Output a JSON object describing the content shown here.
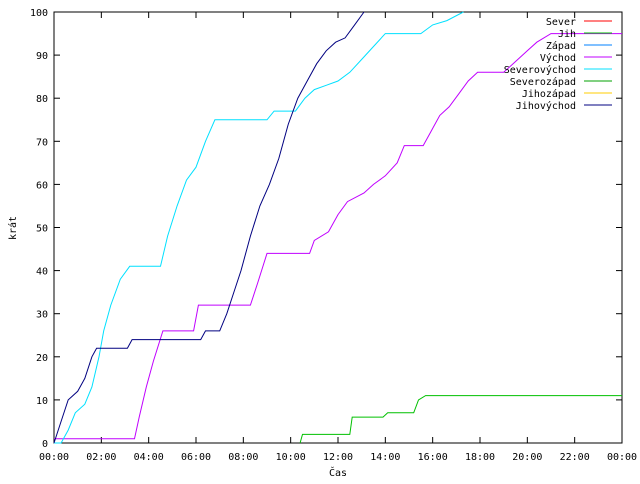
{
  "chart_data": {
    "type": "line",
    "xlabel": "Čas",
    "ylabel": "krát",
    "xlim": [
      0,
      24
    ],
    "ylim": [
      0,
      100
    ],
    "x_ticks": [
      "00:00",
      "02:00",
      "04:00",
      "06:00",
      "08:00",
      "10:00",
      "12:00",
      "14:00",
      "16:00",
      "18:00",
      "20:00",
      "22:00",
      "00:00"
    ],
    "y_ticks": [
      0,
      10,
      20,
      30,
      40,
      50,
      60,
      70,
      80,
      90,
      100
    ],
    "legend_position": "top-right",
    "series": [
      {
        "name": "Sever",
        "color": "#ff0000",
        "points": []
      },
      {
        "name": "Jih",
        "color": "#00c000",
        "points": [
          [
            10.4,
            0
          ],
          [
            10.5,
            2
          ],
          [
            12.5,
            2
          ],
          [
            12.6,
            6
          ],
          [
            13.9,
            6
          ],
          [
            14.1,
            7
          ],
          [
            15.2,
            7
          ],
          [
            15.4,
            10
          ],
          [
            15.7,
            11
          ],
          [
            24,
            11
          ]
        ]
      },
      {
        "name": "Západ",
        "color": "#0080ff",
        "points": []
      },
      {
        "name": "Východ",
        "color": "#c000ff",
        "points": [
          [
            0,
            1
          ],
          [
            3.4,
            1
          ],
          [
            3.6,
            6
          ],
          [
            3.9,
            13
          ],
          [
            4.2,
            19
          ],
          [
            4.6,
            26
          ],
          [
            5.9,
            26
          ],
          [
            6.1,
            32
          ],
          [
            8.3,
            32
          ],
          [
            8.6,
            37
          ],
          [
            9.0,
            44
          ],
          [
            10.8,
            44
          ],
          [
            11.0,
            47
          ],
          [
            11.6,
            49
          ],
          [
            12.0,
            53
          ],
          [
            12.4,
            56
          ],
          [
            13.1,
            58
          ],
          [
            13.5,
            60
          ],
          [
            14.0,
            62
          ],
          [
            14.5,
            65
          ],
          [
            14.8,
            69
          ],
          [
            15.6,
            69
          ],
          [
            15.9,
            72
          ],
          [
            16.3,
            76
          ],
          [
            16.7,
            78
          ],
          [
            17.1,
            81
          ],
          [
            17.5,
            84
          ],
          [
            17.9,
            86
          ],
          [
            19.0,
            86
          ],
          [
            19.4,
            88
          ],
          [
            20.0,
            91
          ],
          [
            20.4,
            93
          ],
          [
            21.0,
            95
          ],
          [
            24,
            95
          ]
        ]
      },
      {
        "name": "Severovýchod",
        "color": "#00e0ff",
        "points": [
          [
            0,
            0
          ],
          [
            0.3,
            0
          ],
          [
            0.6,
            3
          ],
          [
            0.9,
            7
          ],
          [
            1.3,
            9
          ],
          [
            1.6,
            13
          ],
          [
            1.9,
            20
          ],
          [
            2.1,
            26
          ],
          [
            2.4,
            32
          ],
          [
            2.8,
            38
          ],
          [
            3.2,
            41
          ],
          [
            4.5,
            41
          ],
          [
            4.8,
            48
          ],
          [
            5.2,
            55
          ],
          [
            5.6,
            61
          ],
          [
            6.0,
            64
          ],
          [
            6.4,
            70
          ],
          [
            6.8,
            75
          ],
          [
            9.0,
            75
          ],
          [
            9.3,
            77
          ],
          [
            10.2,
            77
          ],
          [
            10.6,
            80
          ],
          [
            11.0,
            82
          ],
          [
            11.5,
            83
          ],
          [
            12.0,
            84
          ],
          [
            12.5,
            86
          ],
          [
            13.0,
            89
          ],
          [
            13.5,
            92
          ],
          [
            14.0,
            95
          ],
          [
            15.5,
            95
          ],
          [
            16.0,
            97
          ],
          [
            16.6,
            98
          ],
          [
            17.3,
            100
          ]
        ]
      },
      {
        "name": "Severozápad",
        "color": "#00a000",
        "points": []
      },
      {
        "name": "Jihozápad",
        "color": "#ffcc00",
        "points": []
      },
      {
        "name": "Jihovýchod",
        "color": "#000080",
        "points": [
          [
            0,
            0
          ],
          [
            0.3,
            5
          ],
          [
            0.6,
            10
          ],
          [
            1.0,
            12
          ],
          [
            1.3,
            15
          ],
          [
            1.6,
            20
          ],
          [
            1.8,
            22
          ],
          [
            3.1,
            22
          ],
          [
            3.3,
            24
          ],
          [
            6.2,
            24
          ],
          [
            6.4,
            26
          ],
          [
            7.0,
            26
          ],
          [
            7.3,
            30
          ],
          [
            7.6,
            35
          ],
          [
            7.9,
            40
          ],
          [
            8.3,
            48
          ],
          [
            8.7,
            55
          ],
          [
            9.1,
            60
          ],
          [
            9.5,
            66
          ],
          [
            9.9,
            74
          ],
          [
            10.3,
            80
          ],
          [
            10.7,
            84
          ],
          [
            11.1,
            88
          ],
          [
            11.5,
            91
          ],
          [
            11.9,
            93
          ],
          [
            12.3,
            94
          ],
          [
            12.7,
            97
          ],
          [
            13.1,
            100
          ]
        ]
      }
    ]
  }
}
